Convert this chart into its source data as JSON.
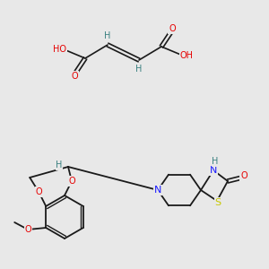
{
  "bg_color": "#e8e8e8",
  "bond_color": "#1a1a1a",
  "atom_colors": {
    "O": "#e60000",
    "N": "#1a1aff",
    "S": "#c8c800",
    "H": "#3a8080",
    "C": "#1a1a1a"
  },
  "font_size": 7.0,
  "font_size_large": 8.0
}
